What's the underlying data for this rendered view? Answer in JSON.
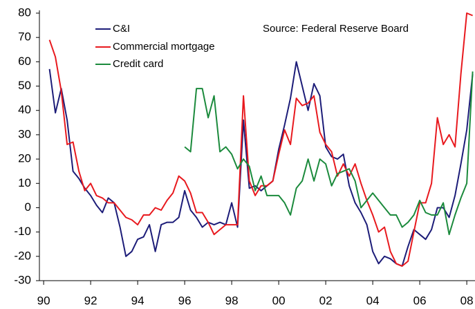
{
  "chart_data": {
    "type": "line",
    "annotation": "Source: Federal Reserve Board",
    "x": [
      1990.25,
      1990.5,
      1990.75,
      1991,
      1991.25,
      1991.5,
      1991.75,
      1992,
      1992.25,
      1992.5,
      1992.75,
      1993,
      1993.25,
      1993.5,
      1993.75,
      1994,
      1994.25,
      1994.5,
      1994.75,
      1995,
      1995.25,
      1995.5,
      1995.75,
      1996,
      1996.25,
      1996.5,
      1996.75,
      1997,
      1997.25,
      1997.5,
      1997.75,
      1998,
      1998.25,
      1998.5,
      1998.75,
      1999,
      1999.25,
      1999.5,
      1999.75,
      2000,
      2000.25,
      2000.5,
      2000.75,
      2001,
      2001.25,
      2001.5,
      2001.75,
      2002,
      2002.25,
      2002.5,
      2002.75,
      2003,
      2003.25,
      2003.5,
      2003.75,
      2004,
      2004.25,
      2004.5,
      2004.75,
      2005,
      2005.25,
      2005.5,
      2005.75,
      2006,
      2006.25,
      2006.5,
      2006.75,
      2007,
      2007.25,
      2007.5,
      2007.75,
      2008,
      2008.25
    ],
    "series": [
      {
        "name": "C&I",
        "color": "#1c1c78",
        "values": [
          57,
          39,
          49,
          36,
          15,
          12,
          8,
          5,
          1,
          -2,
          4,
          2,
          -8,
          -20,
          -18,
          -13,
          -12,
          -7,
          -18,
          -7,
          -6,
          -6,
          -4,
          7,
          -1,
          -4,
          -8,
          -6,
          -7,
          -6,
          -7,
          2,
          -8,
          36,
          8,
          9,
          7,
          9,
          11,
          24,
          34,
          45,
          60,
          50,
          40,
          51,
          46,
          25,
          21,
          20,
          22,
          9,
          2,
          -2,
          -7,
          -18,
          -23,
          -20,
          -21,
          -23,
          -24,
          -16,
          -9,
          -11,
          -13,
          -9,
          0,
          0,
          -4,
          5,
          18,
          32,
          55
        ]
      },
      {
        "name": "Commercial mortgage",
        "color": "#e8191e",
        "values": [
          69,
          62,
          48,
          26,
          27,
          15,
          7,
          10,
          5,
          4,
          2,
          2,
          -1,
          -4,
          -5,
          -7,
          -3,
          -3,
          0,
          -1,
          3,
          6,
          13,
          11,
          6,
          -2,
          -2,
          -6,
          -11,
          -9,
          -7,
          -7,
          -7,
          46,
          11,
          5,
          9,
          9,
          11,
          22,
          32,
          26,
          45,
          42,
          43,
          46,
          31,
          26,
          23,
          13,
          18,
          13,
          18,
          10,
          3,
          -3,
          -10,
          -8,
          -18,
          -23,
          -24,
          -22,
          -10,
          2,
          2,
          10,
          37,
          26,
          30,
          25,
          55,
          80,
          79
        ]
      },
      {
        "name": "Credit card",
        "color": "#1b8a3c",
        "values": [
          null,
          null,
          null,
          null,
          null,
          null,
          null,
          null,
          null,
          null,
          null,
          null,
          null,
          null,
          null,
          null,
          null,
          null,
          null,
          null,
          null,
          null,
          null,
          25,
          23,
          49,
          49,
          37,
          46,
          23,
          25,
          22,
          16,
          20,
          17,
          7,
          13,
          5,
          5,
          5,
          2,
          -3,
          8,
          11,
          20,
          11,
          20,
          18,
          9,
          14,
          15,
          16,
          11,
          0,
          3,
          6,
          3,
          0,
          -3,
          -3,
          -8,
          -6,
          -3,
          3,
          -2,
          -3,
          -3,
          2,
          -11,
          -3,
          4,
          10,
          56
        ]
      }
    ],
    "xlim": [
      1989.82,
      2008.35
    ],
    "xticks": [
      {
        "value": 1990,
        "label": "90"
      },
      {
        "value": 1992,
        "label": "92"
      },
      {
        "value": 1994,
        "label": "94"
      },
      {
        "value": 1996,
        "label": "96"
      },
      {
        "value": 1998,
        "label": "98"
      },
      {
        "value": 2000,
        "label": "00"
      },
      {
        "value": 2002,
        "label": "02"
      },
      {
        "value": 2004,
        "label": "04"
      },
      {
        "value": 2006,
        "label": "06"
      },
      {
        "value": 2008,
        "label": "08"
      }
    ],
    "ylim": [
      -30,
      80
    ],
    "yticks": [
      -30,
      -20,
      -10,
      0,
      10,
      20,
      30,
      40,
      50,
      60,
      70,
      80
    ]
  }
}
